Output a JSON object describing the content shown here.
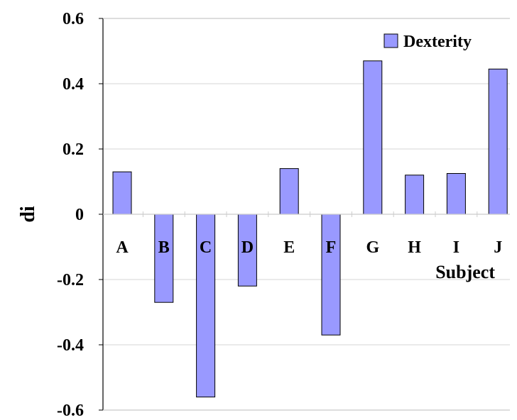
{
  "chart_data": {
    "type": "bar",
    "categories": [
      "A",
      "B",
      "C",
      "D",
      "E",
      "F",
      "G",
      "H",
      "I",
      "J"
    ],
    "series": [
      {
        "name": "Dexterity",
        "values": [
          0.13,
          -0.27,
          -0.56,
          -0.22,
          0.14,
          -0.37,
          0.47,
          0.12,
          0.125,
          0.445
        ]
      }
    ],
    "ylabel": "di",
    "xlabel": "Subject",
    "ylim": [
      -0.6,
      0.6
    ],
    "yticks": [
      "0.6",
      "0.4",
      "0.2",
      "0",
      "-0.2",
      "-0.4",
      "-0.6"
    ],
    "grid": true,
    "legend_position": "top-right",
    "colors": {
      "bar_fill": "#9999ff",
      "bar_stroke": "#000000",
      "grid": "#d4d4d4",
      "axis": "#000000"
    }
  }
}
